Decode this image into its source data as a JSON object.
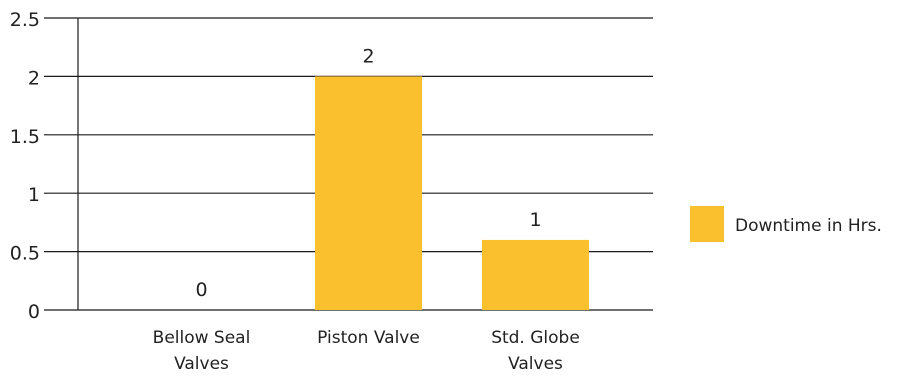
{
  "chart_data": {
    "type": "bar",
    "categories": [
      [
        "Bellow Seal",
        "Valves"
      ],
      [
        "Piston Valve"
      ],
      [
        "Std. Globe",
        "Valves"
      ]
    ],
    "series": [
      {
        "name": "Downtime in Hrs.",
        "values": [
          0,
          2,
          0.6
        ],
        "data_labels": [
          "0",
          "2",
          "1"
        ]
      }
    ],
    "y_ticks": [
      "0",
      "0.5",
      "1",
      "1.5",
      "2",
      "2.5"
    ],
    "ylim": [
      0,
      2.5
    ],
    "grid": true,
    "legend_position": "right",
    "colors": {
      "bar": "#FBC02D",
      "grid": "#1a1a1a",
      "axis": "#1a1a1a"
    }
  }
}
